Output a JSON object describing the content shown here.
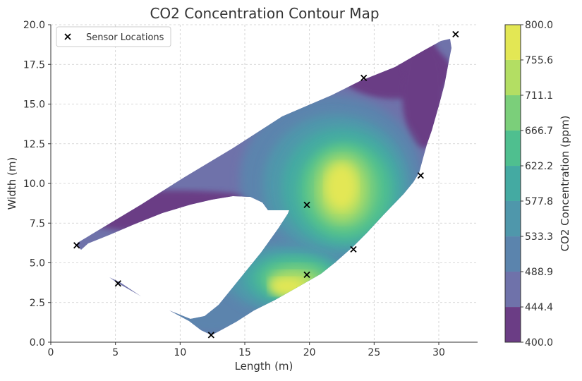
{
  "chart_data": {
    "type": "contour",
    "title": "CO2 Concentration Contour Map",
    "xlabel": "Length (m)",
    "ylabel": "Width (m)",
    "xlim": [
      0,
      33
    ],
    "ylim": [
      0,
      20
    ],
    "x_ticks": [
      0,
      5,
      10,
      15,
      20,
      25,
      30
    ],
    "y_ticks": [
      0.0,
      2.5,
      5.0,
      7.5,
      10.0,
      12.5,
      15.0,
      17.5,
      20.0
    ],
    "x_tick_labels": [
      "0",
      "5",
      "10",
      "15",
      "20",
      "25",
      "30"
    ],
    "y_tick_labels": [
      "0.0",
      "2.5",
      "5.0",
      "7.5",
      "10.0",
      "12.5",
      "15.0",
      "17.5",
      "20.0"
    ],
    "grid": true,
    "legend": {
      "placement": "top-left",
      "entries": [
        "Sensor Locations"
      ]
    },
    "colorbar": {
      "label": "CO2 Concentration (ppm)",
      "levels": [
        400.0,
        444.4,
        488.9,
        533.3,
        577.8,
        622.2,
        666.7,
        711.1,
        755.6,
        800.0
      ],
      "tick_labels": [
        "400.0",
        "444.4",
        "488.9",
        "533.3",
        "577.8",
        "622.2",
        "666.7",
        "711.1",
        "755.6",
        "800.0"
      ],
      "colors": [
        "#6b3d85",
        "#6f72aa",
        "#5b84ad",
        "#4f97ab",
        "#44aaa2",
        "#4fbf8f",
        "#7bcf7a",
        "#b3de63",
        "#e3e754"
      ]
    },
    "sensors": [
      {
        "x": 2.0,
        "y": 6.1
      },
      {
        "x": 5.2,
        "y": 3.7
      },
      {
        "x": 12.4,
        "y": 0.45
      },
      {
        "x": 19.8,
        "y": 8.65
      },
      {
        "x": 19.8,
        "y": 4.25
      },
      {
        "x": 23.4,
        "y": 5.85
      },
      {
        "x": 24.2,
        "y": 16.65
      },
      {
        "x": 28.6,
        "y": 10.5
      },
      {
        "x": 31.3,
        "y": 19.4
      }
    ]
  }
}
